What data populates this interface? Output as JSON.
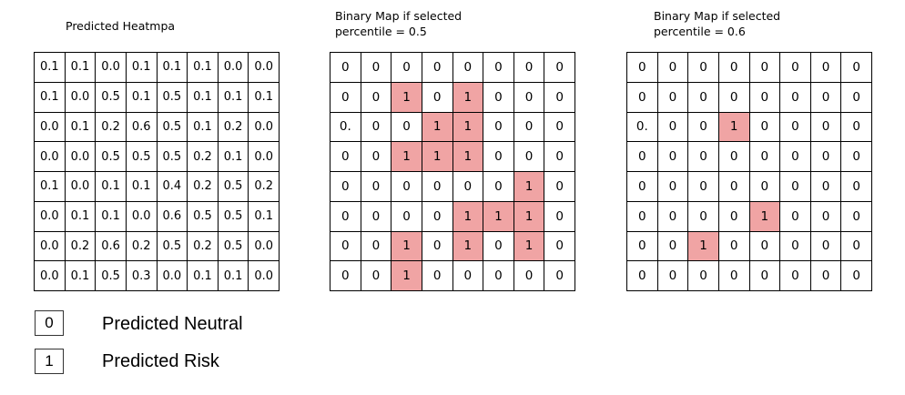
{
  "heatmap": {
    "title": "Predicted Heatmpa",
    "rows": [
      [
        "0.1",
        "0.1",
        "0.0",
        "0.1",
        "0.1",
        "0.1",
        "0.0",
        "0.0"
      ],
      [
        "0.1",
        "0.0",
        "0.5",
        "0.1",
        "0.5",
        "0.1",
        "0.1",
        "0.1"
      ],
      [
        "0.0",
        "0.1",
        "0.2",
        "0.6",
        "0.5",
        "0.1",
        "0.2",
        "0.0"
      ],
      [
        "0.0",
        "0.0",
        "0.5",
        "0.5",
        "0.5",
        "0.2",
        "0.1",
        "0.0"
      ],
      [
        "0.1",
        "0.0",
        "0.1",
        "0.1",
        "0.4",
        "0.2",
        "0.5",
        "0.2"
      ],
      [
        "0.0",
        "0.1",
        "0.1",
        "0.0",
        "0.6",
        "0.5",
        "0.5",
        "0.1"
      ],
      [
        "0.0",
        "0.2",
        "0.6",
        "0.2",
        "0.5",
        "0.2",
        "0.5",
        "0.0"
      ],
      [
        "0.0",
        "0.1",
        "0.5",
        "0.3",
        "0.0",
        "0.1",
        "0.1",
        "0.0"
      ]
    ]
  },
  "map_05": {
    "title_line1": "Binary Map if selected",
    "title_line2": "percentile = 0.5",
    "rows": [
      [
        "0",
        "0",
        "0",
        "0",
        "0",
        "0",
        "0",
        "0"
      ],
      [
        "0",
        "0",
        "1",
        "0",
        "1",
        "0",
        "0",
        "0"
      ],
      [
        "0.",
        "0",
        "0",
        "1",
        "1",
        "0",
        "0",
        "0"
      ],
      [
        "0",
        "0",
        "1",
        "1",
        "1",
        "0",
        "0",
        "0"
      ],
      [
        "0",
        "0",
        "0",
        "0",
        "0",
        "0",
        "1",
        "0"
      ],
      [
        "0",
        "0",
        "0",
        "0",
        "1",
        "1",
        "1",
        "0"
      ],
      [
        "0",
        "0",
        "1",
        "0",
        "1",
        "0",
        "1",
        "0"
      ],
      [
        "0",
        "0",
        "1",
        "0",
        "0",
        "0",
        "0",
        "0"
      ]
    ]
  },
  "map_06": {
    "title_line1": "Binary Map if selected",
    "title_line2": "percentile = 0.6",
    "rows": [
      [
        "0",
        "0",
        "0",
        "0",
        "0",
        "0",
        "0",
        "0"
      ],
      [
        "0",
        "0",
        "0",
        "0",
        "0",
        "0",
        "0",
        "0"
      ],
      [
        "0.",
        "0",
        "0",
        "1",
        "0",
        "0",
        "0",
        "0"
      ],
      [
        "0",
        "0",
        "0",
        "0",
        "0",
        "0",
        "0",
        "0"
      ],
      [
        "0",
        "0",
        "0",
        "0",
        "0",
        "0",
        "0",
        "0"
      ],
      [
        "0",
        "0",
        "0",
        "0",
        "1",
        "0",
        "0",
        "0"
      ],
      [
        "0",
        "0",
        "1",
        "0",
        "0",
        "0",
        "0",
        "0"
      ],
      [
        "0",
        "0",
        "0",
        "0",
        "0",
        "0",
        "0",
        "0"
      ]
    ]
  },
  "legend": {
    "neutral_value": "0",
    "neutral_label": "Predicted Neutral",
    "risk_value": "1",
    "risk_label": "Predicted Risk"
  },
  "colors": {
    "risk_fill": "#f0a4a4",
    "grid_line": "#000000"
  }
}
